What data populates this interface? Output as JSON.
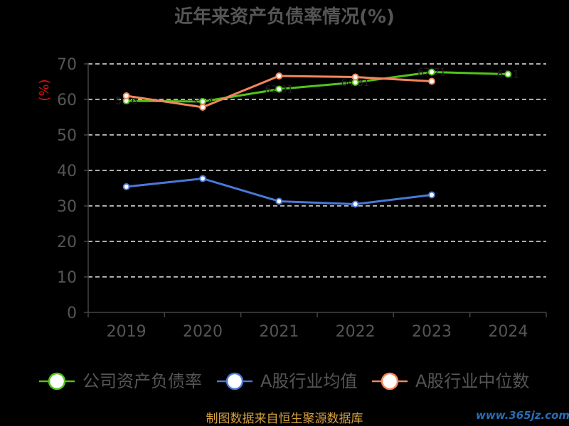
{
  "chart_data": {
    "type": "line",
    "title": "近年来资产负债率情况(%)",
    "ylabel": "(%)",
    "categories": [
      "2019",
      "2020",
      "2021",
      "2022",
      "2023",
      "2024"
    ],
    "ylim": [
      0,
      70
    ],
    "yticks": [
      0,
      10,
      20,
      30,
      40,
      50,
      60,
      70
    ],
    "grid": true,
    "legend_position": "bottom",
    "series": [
      {
        "name": "公司资产负债率",
        "color": "#52c41a",
        "values": [
          59.6,
          59.4,
          62.9,
          64.8,
          67.7,
          67.1
        ],
        "labels": [
          "59.6",
          "59.4",
          "62.91",
          "64.81",
          "67.71",
          "67.1"
        ]
      },
      {
        "name": "A股行业均值",
        "color": "#4a78d6",
        "values": [
          35.4,
          37.7,
          31.3,
          30.5,
          33.1,
          null
        ]
      },
      {
        "name": "A股行业中位数",
        "color": "#f4875a",
        "values": [
          61.0,
          57.8,
          66.6,
          66.3,
          65.1,
          null
        ]
      }
    ]
  },
  "footer": "制图数据来自恒生聚源数据库",
  "watermark": "www.365jz.com"
}
